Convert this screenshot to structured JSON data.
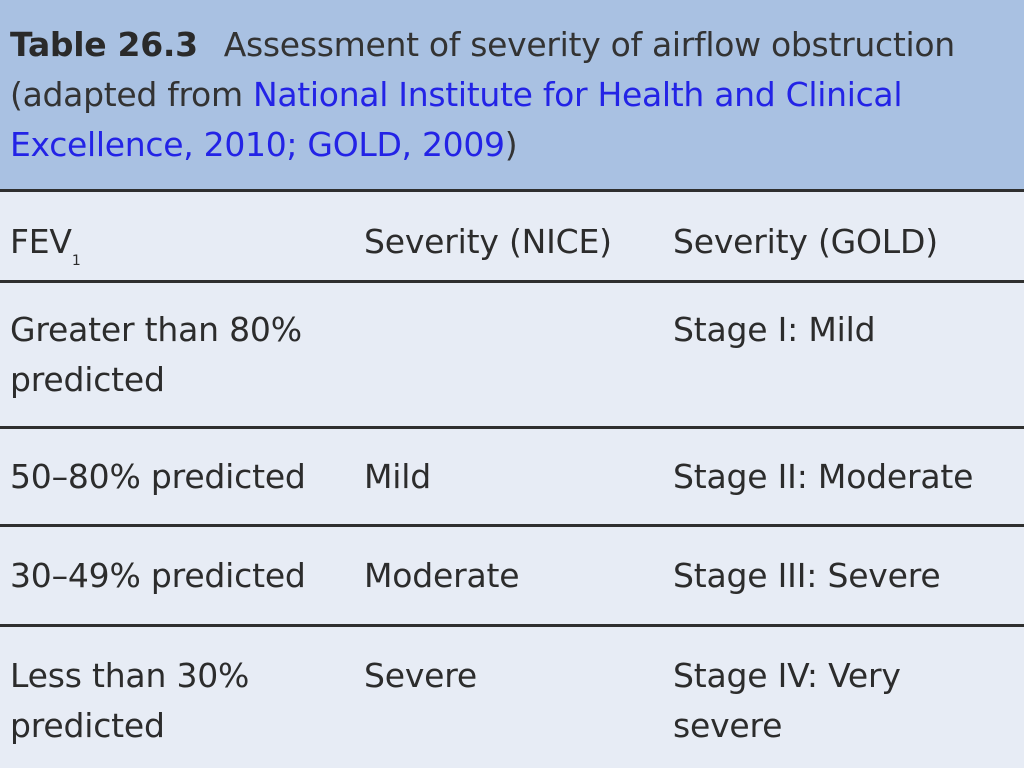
{
  "caption": {
    "table_number": "Table 26.3",
    "title": "Assessment of severity of airflow obstruction",
    "source_prefix": "(adapted from ",
    "source_link": "National Institute for Health and Clinical Excellence, 2010; GOLD, 2009",
    "source_suffix": ")"
  },
  "table": {
    "headers": {
      "fev_main": "FEV",
      "fev_sub": "1",
      "nice": "Severity (NICE)",
      "gold": "Severity (GOLD)"
    },
    "rows": [
      {
        "fev": "Greater than 80% predicted",
        "nice": "",
        "gold": "Stage I: Mild"
      },
      {
        "fev": "50–80% predicted",
        "nice": "Mild",
        "gold": "Stage II: Moderate"
      },
      {
        "fev": "30–49% predicted",
        "nice": "Moderate",
        "gold": "Stage III: Severe"
      },
      {
        "fev": "Less than 30% predicted",
        "nice": "Severe",
        "gold": "Stage IV: Very severe"
      }
    ]
  },
  "colors": {
    "caption_background": "#a9c1e2",
    "table_background": "#e7ecf5",
    "link": "#2323e6",
    "rule": "#2f2f2f"
  }
}
